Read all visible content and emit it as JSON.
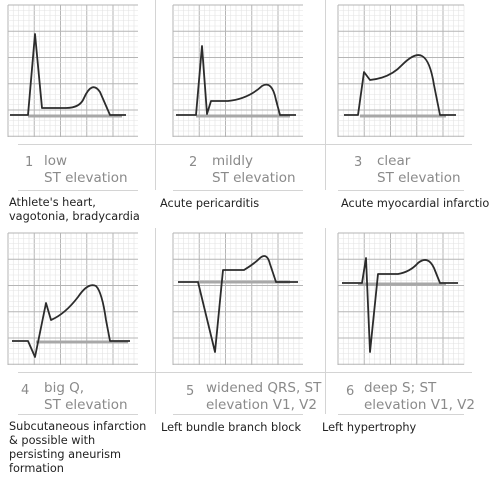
{
  "colors": {
    "grid_minor": "#e3e3e3",
    "grid_major": "#b5b5b5",
    "baseline": "#a8a8a8",
    "trace": "#2c2c2c",
    "caption": "#8a8a8a",
    "description": "#222222",
    "divider": "#d4d4d4"
  },
  "panels": [
    {
      "num": "1",
      "caption_lines": [
        "low",
        "ST elevation"
      ],
      "desc_lines": [
        "Athlete's heart,",
        "vagotonia, bradycardia"
      ]
    },
    {
      "num": "2",
      "caption_lines": [
        "mildly",
        "ST elevation"
      ],
      "desc_lines": [
        "Acute pericarditis"
      ]
    },
    {
      "num": "3",
      "caption_lines": [
        "clear",
        "ST elevation"
      ],
      "desc_lines": [
        "Acute myocardial infarction"
      ]
    },
    {
      "num": "4",
      "caption_lines": [
        "big Q,",
        "ST elevation"
      ],
      "desc_lines": [
        "Subcutaneous infarction",
        "& possible with",
        "persisting aneurism",
        "formation"
      ]
    },
    {
      "num": "5",
      "caption_lines": [
        "widened QRS, ST",
        "elevation V1, V2"
      ],
      "desc_lines": [
        "Left bundle branch block"
      ]
    },
    {
      "num": "6",
      "caption_lines": [
        "deep S; ST",
        "elevation V1, V2"
      ],
      "desc_lines": [
        "Left hypertrophy"
      ]
    }
  ]
}
